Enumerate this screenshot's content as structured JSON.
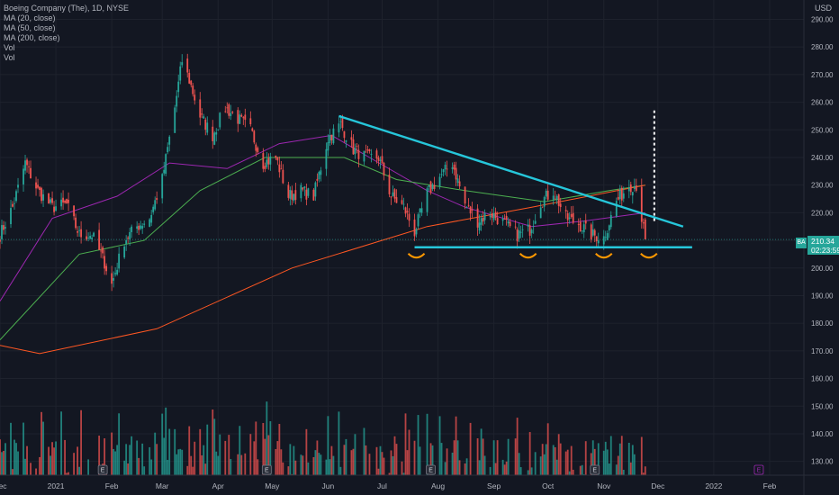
{
  "legend": {
    "title": "Boeing Company (The), 1D, NYSE",
    "lines": [
      "MA (20, close)",
      "MA (50, close)",
      "MA (200, close)",
      "Vol",
      "Vol"
    ]
  },
  "currency": "USD",
  "price_badge": {
    "ticker": "BA",
    "price": "210.34",
    "countdown": "02:23:59"
  },
  "colors": {
    "background": "#131722",
    "up": "#26a69a",
    "down": "#ef5350",
    "ma20": "#9c27b0",
    "ma50": "#4caf50",
    "ma200": "#ff5722",
    "trendline": "#26c6da",
    "swing_marker": "#ff9800"
  },
  "chart_data": {
    "type": "candlestick",
    "title": "Boeing Company (The), 1D, NYSE",
    "yaxis": {
      "unit": "USD",
      "range": [
        125,
        297
      ],
      "ticks": [
        "290.00",
        "280.00",
        "270.00",
        "260.00",
        "250.00",
        "240.00",
        "230.00",
        "220.00",
        "210.00",
        "200.00",
        "190.00",
        "180.00",
        "170.00",
        "160.00",
        "150.00",
        "140.00",
        "130.00"
      ]
    },
    "xaxis": {
      "ticks": [
        "Dec",
        "2021",
        "Feb",
        "Mar",
        "Apr",
        "May",
        "Jun",
        "Jul",
        "Aug",
        "Sep",
        "Oct",
        "Nov",
        "Dec",
        "2022",
        "Feb"
      ],
      "range": [
        "2020-12-01",
        "2022-02-20"
      ]
    },
    "last_price": 210.34,
    "price_path": [
      [
        "2020-12-01",
        212
      ],
      [
        "2020-12-08",
        222
      ],
      [
        "2020-12-15",
        238
      ],
      [
        "2020-12-22",
        228
      ],
      [
        "2020-12-30",
        222
      ],
      [
        "2021-01-07",
        223
      ],
      [
        "2021-01-14",
        212
      ],
      [
        "2021-01-21",
        212
      ],
      [
        "2021-01-28",
        202
      ],
      [
        "2021-02-01",
        194
      ],
      [
        "2021-02-08",
        210
      ],
      [
        "2021-02-15",
        215
      ],
      [
        "2021-02-22",
        218
      ],
      [
        "2021-03-01",
        232
      ],
      [
        "2021-03-08",
        258
      ],
      [
        "2021-03-12",
        275
      ],
      [
        "2021-03-16",
        268
      ],
      [
        "2021-03-22",
        255
      ],
      [
        "2021-03-29",
        248
      ],
      [
        "2021-04-05",
        258
      ],
      [
        "2021-04-12",
        254
      ],
      [
        "2021-04-19",
        250
      ],
      [
        "2021-04-26",
        238
      ],
      [
        "2021-05-03",
        240
      ],
      [
        "2021-05-10",
        226
      ],
      [
        "2021-05-17",
        228
      ],
      [
        "2021-05-24",
        226
      ],
      [
        "2021-06-01",
        247
      ],
      [
        "2021-06-08",
        252
      ],
      [
        "2021-06-15",
        243
      ],
      [
        "2021-06-22",
        240
      ],
      [
        "2021-06-29",
        240
      ],
      [
        "2021-07-06",
        226
      ],
      [
        "2021-07-13",
        222
      ],
      [
        "2021-07-19",
        213
      ],
      [
        "2021-07-26",
        227
      ],
      [
        "2021-08-02",
        233
      ],
      [
        "2021-08-09",
        238
      ],
      [
        "2021-08-16",
        223
      ],
      [
        "2021-08-23",
        217
      ],
      [
        "2021-08-30",
        220
      ],
      [
        "2021-09-07",
        216
      ],
      [
        "2021-09-14",
        212
      ],
      [
        "2021-09-21",
        214
      ],
      [
        "2021-09-27",
        224
      ],
      [
        "2021-10-04",
        228
      ],
      [
        "2021-10-11",
        218
      ],
      [
        "2021-10-18",
        216
      ],
      [
        "2021-10-25",
        212
      ],
      [
        "2021-11-01",
        211
      ],
      [
        "2021-11-08",
        224
      ],
      [
        "2021-11-15",
        230
      ],
      [
        "2021-11-19",
        230
      ],
      [
        "2021-11-24",
        210
      ]
    ],
    "ma_20": [
      [
        0,
        188
      ],
      [
        20,
        218
      ],
      [
        45,
        226
      ],
      [
        65,
        238
      ],
      [
        85,
        236
      ],
      [
        105,
        245
      ],
      [
        125,
        248
      ],
      [
        140,
        240
      ],
      [
        160,
        228
      ],
      [
        175,
        222
      ],
      [
        200,
        215
      ],
      [
        220,
        217
      ],
      [
        243,
        220
      ]
    ],
    "ma_50": [
      [
        0,
        174
      ],
      [
        30,
        205
      ],
      [
        55,
        210
      ],
      [
        75,
        228
      ],
      [
        100,
        240
      ],
      [
        130,
        240
      ],
      [
        150,
        232
      ],
      [
        175,
        228
      ],
      [
        205,
        224
      ],
      [
        230,
        228
      ],
      [
        243,
        230
      ]
    ],
    "ma_200": [
      [
        0,
        172
      ],
      [
        15,
        169
      ],
      [
        60,
        178
      ],
      [
        110,
        200
      ],
      [
        160,
        215
      ],
      [
        200,
        222
      ],
      [
        243,
        230
      ]
    ],
    "trendlines": [
      {
        "name": "descending resistance",
        "from": [
          "2021-06-07",
          255
        ],
        "to": [
          "2021-12-15",
          215
        ]
      },
      {
        "name": "horizontal support",
        "from": [
          "2021-07-19",
          207.5
        ],
        "to": [
          "2021-12-20",
          207.5
        ]
      }
    ],
    "swing_lows": [
      "2021-07-20",
      "2021-09-20",
      "2021-11-01",
      "2021-11-26"
    ],
    "target_projection": {
      "date": "2021-11-29",
      "from": 217,
      "to": 257
    },
    "volume_scale": [
      135,
      170
    ],
    "earnings_markers": [
      "2021-01-27",
      "2021-04-28",
      "2021-07-28",
      "2021-10-27",
      "2022-01-26"
    ]
  }
}
